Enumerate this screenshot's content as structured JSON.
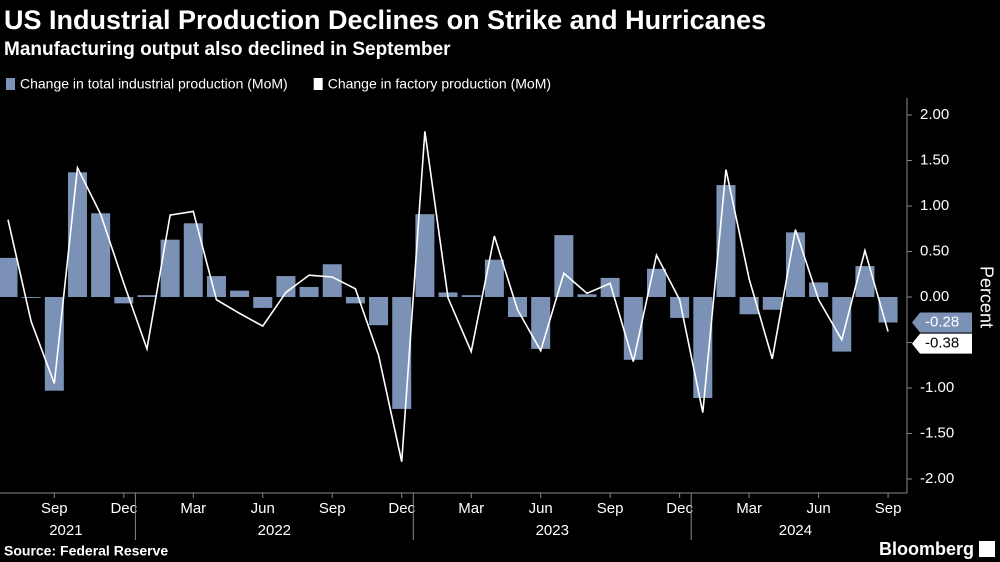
{
  "chart_data": {
    "type": "bar",
    "title": "US Industrial Production Declines on Strike and Hurricanes",
    "subtitle": "Manufacturing output also declined in September",
    "y_label": "Percent",
    "source": "Source: Federal Reserve",
    "brand": "Bloomberg",
    "x": [
      "2021-07",
      "2021-08",
      "2021-09",
      "2021-10",
      "2021-11",
      "2021-12",
      "2022-01",
      "2022-02",
      "2022-03",
      "2022-04",
      "2022-05",
      "2022-06",
      "2022-07",
      "2022-08",
      "2022-09",
      "2022-10",
      "2022-11",
      "2022-12",
      "2023-01",
      "2023-02",
      "2023-03",
      "2023-04",
      "2023-05",
      "2023-06",
      "2023-07",
      "2023-08",
      "2023-09",
      "2023-10",
      "2023-11",
      "2023-12",
      "2024-01",
      "2024-02",
      "2024-03",
      "2024-04",
      "2024-05",
      "2024-06",
      "2024-07",
      "2024-08",
      "2024-09"
    ],
    "series": [
      {
        "name": "Change in total industrial production (MoM)",
        "type": "bar",
        "color": "#7b92b6",
        "values": [
          0.43,
          -0.01,
          -1.03,
          1.37,
          0.92,
          -0.07,
          0.02,
          0.63,
          0.81,
          0.23,
          0.07,
          -0.12,
          0.23,
          0.11,
          0.36,
          -0.07,
          -0.31,
          -1.23,
          0.91,
          0.05,
          0.02,
          0.41,
          -0.22,
          -0.57,
          0.68,
          0.03,
          0.21,
          -0.69,
          0.31,
          -0.23,
          -1.11,
          1.23,
          -0.19,
          -0.14,
          0.71,
          0.16,
          -0.6,
          0.34,
          -0.28
        ]
      },
      {
        "name": "Change in factory production (MoM)",
        "type": "line",
        "color": "#ffffff",
        "values": [
          0.85,
          -0.27,
          -0.95,
          1.42,
          0.91,
          0.15,
          -0.57,
          0.9,
          0.94,
          -0.03,
          -0.18,
          -0.32,
          0.05,
          0.24,
          0.22,
          0.09,
          -0.64,
          -1.81,
          1.82,
          -0.01,
          -0.6,
          0.67,
          -0.14,
          -0.59,
          0.26,
          0.04,
          0.15,
          -0.71,
          0.46,
          -0.03,
          -1.27,
          1.4,
          0.2,
          -0.68,
          0.74,
          -0.03,
          -0.47,
          0.51,
          -0.38
        ]
      }
    ],
    "xticks": [
      {
        "value": "2021-09",
        "label": "Sep"
      },
      {
        "value": "2021-12",
        "label": "Dec"
      },
      {
        "value": "2022-03",
        "label": "Mar"
      },
      {
        "value": "2022-06",
        "label": "Jun"
      },
      {
        "value": "2022-09",
        "label": "Sep"
      },
      {
        "value": "2022-12",
        "label": "Dec"
      },
      {
        "value": "2023-03",
        "label": "Mar"
      },
      {
        "value": "2023-06",
        "label": "Jun"
      },
      {
        "value": "2023-09",
        "label": "Sep"
      },
      {
        "value": "2023-12",
        "label": "Dec"
      },
      {
        "value": "2024-03",
        "label": "Mar"
      },
      {
        "value": "2024-06",
        "label": "Jun"
      },
      {
        "value": "2024-09",
        "label": "Sep"
      }
    ],
    "year_labels": [
      2021,
      2022,
      2023,
      2024
    ],
    "ylim": [
      -2.1,
      2.1
    ],
    "yticks": [
      {
        "value": 2,
        "label": "2.00"
      },
      {
        "value": 1.5,
        "label": "1.50"
      },
      {
        "value": 1,
        "label": "1.00"
      },
      {
        "value": 0.5,
        "label": "0.50"
      },
      {
        "value": 0,
        "label": "0.00"
      },
      {
        "value": -0.5,
        "label": "-0.50"
      },
      {
        "value": -1,
        "label": "-1.00"
      },
      {
        "value": -1.5,
        "label": "-1.50"
      },
      {
        "value": -2,
        "label": "-2.00"
      }
    ],
    "grid": false
  }
}
